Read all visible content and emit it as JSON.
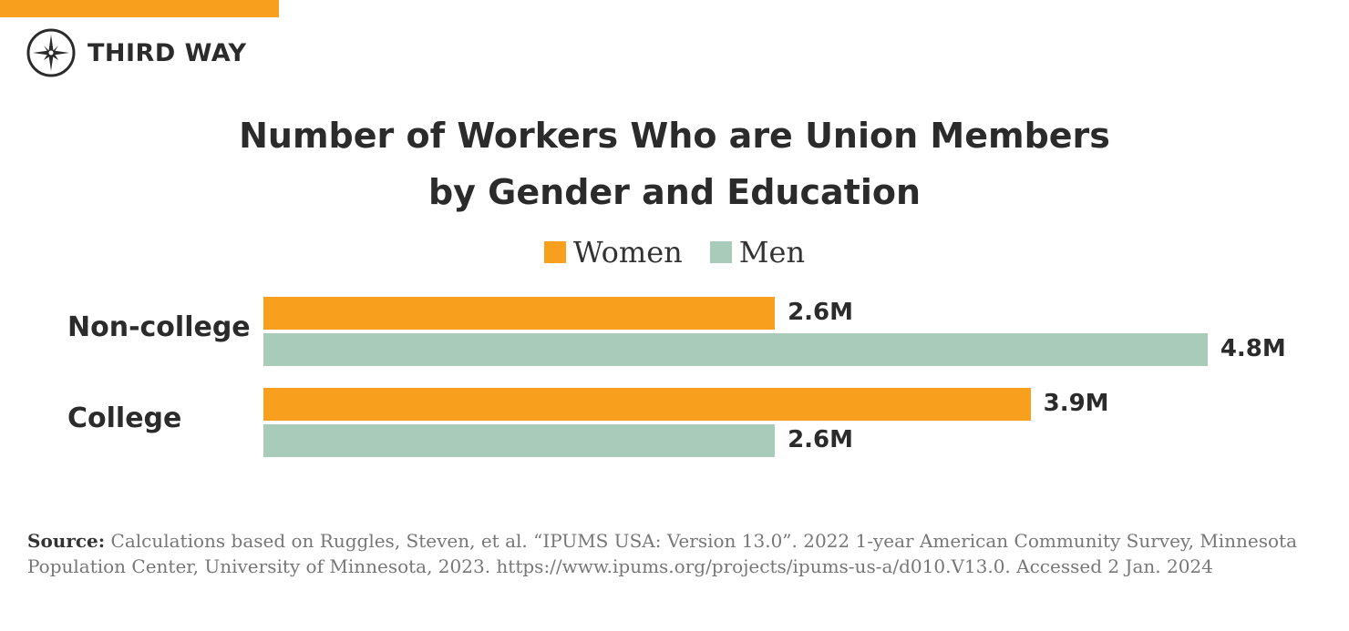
{
  "brand": {
    "name": "THIRD WAY",
    "accent": "#f99f1e"
  },
  "chart_data": {
    "type": "bar",
    "orientation": "horizontal",
    "title": [
      "Number of Workers Who are Union Members",
      "by Gender and Education"
    ],
    "categories": [
      "Non-college",
      "College"
    ],
    "series": [
      {
        "name": "Women",
        "color": "#f99f1e",
        "values": [
          2.6,
          3.9
        ],
        "labels": [
          "2.6M",
          "3.9M"
        ]
      },
      {
        "name": "Men",
        "color": "#a8ccb9",
        "values": [
          4.8,
          2.6
        ],
        "labels": [
          "4.8M",
          "2.6M"
        ]
      }
    ],
    "unit": "M",
    "legend": "top-center",
    "grid": false
  },
  "source": {
    "label": "Source:",
    "text": " Calculations based on Ruggles, Steven, et al. “IPUMS USA: Version 13.0”. 2022 1-year American Community Survey, Minnesota Population Center, University of Minnesota, 2023. https://www.ipums.org/projects/ipums-us-a/d010.V13.0. Accessed 2 Jan. 2024"
  }
}
